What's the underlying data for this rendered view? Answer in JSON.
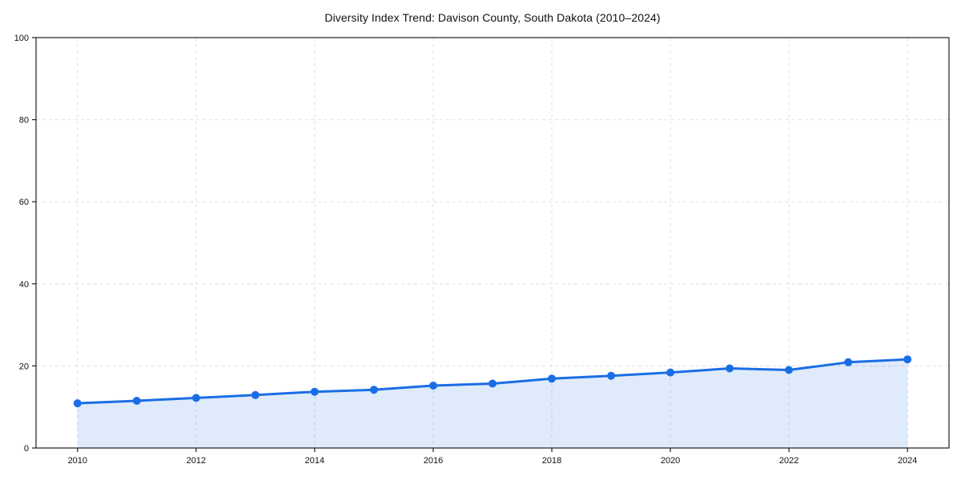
{
  "figure": {
    "title": "Diversity Index Trend: Davison County, South Dakota (2010–2024)"
  },
  "chart_data": {
    "type": "area",
    "title": "Diversity Index Trend: Davison County, South Dakota (2010–2024)",
    "series_name": "Diversity Index",
    "x": [
      2010,
      2011,
      2012,
      2013,
      2014,
      2015,
      2016,
      2017,
      2018,
      2019,
      2020,
      2021,
      2022,
      2023,
      2024
    ],
    "values": [
      10.9,
      11.5,
      12.2,
      12.9,
      13.7,
      14.2,
      15.2,
      15.7,
      16.9,
      17.6,
      18.4,
      19.4,
      19.0,
      20.9,
      21.6
    ],
    "xlabel": "",
    "ylabel": "",
    "ylim": [
      0,
      100
    ],
    "yticks": [
      0,
      20,
      40,
      60,
      80,
      100
    ],
    "xticks": [
      2010,
      2012,
      2014,
      2016,
      2018,
      2020,
      2022,
      2024
    ],
    "grid": true,
    "grid_style": "dashed",
    "legend": false,
    "marker": "circle",
    "colors": {
      "line": "#1a6ee5",
      "marker": "#1a6ee5",
      "fill": "rgba(26, 110, 229, 0.14)",
      "grid": "#e0e0e0",
      "axis": "#1f1f1f",
      "text": "#111111",
      "background": "#ffffff"
    }
  }
}
